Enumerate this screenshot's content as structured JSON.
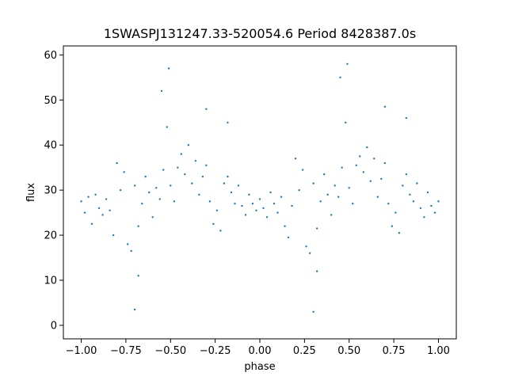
{
  "chart_data": {
    "type": "scatter",
    "title": "1SWASPJ131247.33-520054.6 Period 8428387.0s",
    "xlabel": "phase",
    "ylabel": "flux",
    "xlim": [
      -1.1,
      1.1
    ],
    "ylim": [
      -3,
      62
    ],
    "xticks": [
      -1.0,
      -0.75,
      -0.5,
      -0.25,
      0.0,
      0.25,
      0.5,
      0.75,
      1.0
    ],
    "xtick_labels": [
      "−1.00",
      "−0.75",
      "−0.50",
      "−0.25",
      "0.00",
      "0.25",
      "0.50",
      "0.75",
      "1.00"
    ],
    "yticks": [
      0,
      10,
      20,
      30,
      40,
      50,
      60
    ],
    "ytick_labels": [
      "0",
      "10",
      "20",
      "30",
      "40",
      "50",
      "60"
    ],
    "grid": false,
    "marker_color": "#1f77b4",
    "series": [
      {
        "points": [
          [
            -1.0,
            27.5
          ],
          [
            -0.98,
            25.0
          ],
          [
            -0.96,
            28.5
          ],
          [
            -0.94,
            22.5
          ],
          [
            -0.92,
            29.0
          ],
          [
            -0.9,
            26.0
          ],
          [
            -0.88,
            24.5
          ],
          [
            -0.86,
            28.0
          ],
          [
            -0.84,
            25.5
          ],
          [
            -0.82,
            20.0
          ],
          [
            -0.8,
            36.0
          ],
          [
            -0.78,
            30.0
          ],
          [
            -0.76,
            34.0
          ],
          [
            -0.74,
            18.0
          ],
          [
            -0.72,
            16.5
          ],
          [
            -0.7,
            31.0
          ],
          [
            -0.68,
            22.0
          ],
          [
            -0.66,
            27.0
          ],
          [
            -0.64,
            33.0
          ],
          [
            -0.62,
            29.5
          ],
          [
            -0.6,
            24.0
          ],
          [
            -0.58,
            30.5
          ],
          [
            -0.56,
            28.0
          ],
          [
            -0.54,
            34.5
          ],
          [
            -0.52,
            44.0
          ],
          [
            -0.5,
            31.0
          ],
          [
            -0.48,
            27.5
          ],
          [
            -0.46,
            35.0
          ],
          [
            -0.44,
            38.0
          ],
          [
            -0.42,
            33.5
          ],
          [
            -0.4,
            40.0
          ],
          [
            -0.38,
            31.5
          ],
          [
            -0.36,
            36.5
          ],
          [
            -0.34,
            29.0
          ],
          [
            -0.32,
            33.0
          ],
          [
            -0.3,
            35.5
          ],
          [
            -0.28,
            27.5
          ],
          [
            -0.26,
            22.5
          ],
          [
            -0.24,
            25.5
          ],
          [
            -0.22,
            21.0
          ],
          [
            -0.2,
            31.5
          ],
          [
            -0.18,
            33.0
          ],
          [
            -0.16,
            29.5
          ],
          [
            -0.14,
            27.0
          ],
          [
            -0.12,
            31.0
          ],
          [
            -0.1,
            26.5
          ],
          [
            -0.08,
            24.5
          ],
          [
            -0.06,
            29.0
          ],
          [
            -0.04,
            27.0
          ],
          [
            -0.02,
            25.5
          ],
          [
            0.0,
            28.0
          ],
          [
            0.02,
            26.0
          ],
          [
            0.04,
            24.0
          ],
          [
            0.06,
            29.5
          ],
          [
            0.08,
            27.0
          ],
          [
            0.1,
            25.0
          ],
          [
            0.12,
            28.5
          ],
          [
            0.14,
            22.0
          ],
          [
            0.16,
            19.5
          ],
          [
            0.18,
            26.5
          ],
          [
            0.2,
            37.0
          ],
          [
            0.22,
            30.0
          ],
          [
            0.24,
            34.5
          ],
          [
            0.26,
            17.5
          ],
          [
            0.28,
            16.0
          ],
          [
            0.3,
            31.5
          ],
          [
            0.32,
            21.5
          ],
          [
            0.34,
            27.5
          ],
          [
            0.36,
            33.5
          ],
          [
            0.38,
            29.0
          ],
          [
            0.4,
            24.5
          ],
          [
            0.42,
            31.0
          ],
          [
            0.44,
            28.5
          ],
          [
            0.46,
            35.0
          ],
          [
            0.48,
            45.0
          ],
          [
            0.5,
            30.5
          ],
          [
            0.52,
            27.0
          ],
          [
            0.54,
            35.5
          ],
          [
            0.56,
            37.5
          ],
          [
            0.58,
            34.0
          ],
          [
            0.6,
            39.5
          ],
          [
            0.62,
            32.0
          ],
          [
            0.64,
            37.0
          ],
          [
            0.66,
            28.5
          ],
          [
            0.68,
            32.5
          ],
          [
            0.7,
            36.0
          ],
          [
            0.72,
            27.0
          ],
          [
            0.74,
            22.0
          ],
          [
            0.76,
            25.0
          ],
          [
            0.78,
            20.5
          ],
          [
            0.8,
            31.0
          ],
          [
            0.82,
            33.5
          ],
          [
            0.84,
            29.0
          ],
          [
            0.86,
            27.5
          ],
          [
            0.88,
            31.5
          ],
          [
            0.9,
            26.0
          ],
          [
            0.92,
            24.0
          ],
          [
            0.94,
            29.5
          ],
          [
            0.96,
            26.5
          ],
          [
            0.98,
            25.0
          ],
          [
            1.0,
            27.5
          ],
          [
            -0.55,
            52.0
          ],
          [
            -0.51,
            57.0
          ],
          [
            0.45,
            55.0
          ],
          [
            0.49,
            58.0
          ],
          [
            -0.7,
            3.5
          ],
          [
            0.3,
            3.0
          ],
          [
            -0.68,
            11.0
          ],
          [
            0.32,
            12.0
          ],
          [
            -0.3,
            48.0
          ],
          [
            0.7,
            48.5
          ],
          [
            -0.18,
            45.0
          ],
          [
            0.82,
            46.0
          ]
        ]
      }
    ]
  }
}
